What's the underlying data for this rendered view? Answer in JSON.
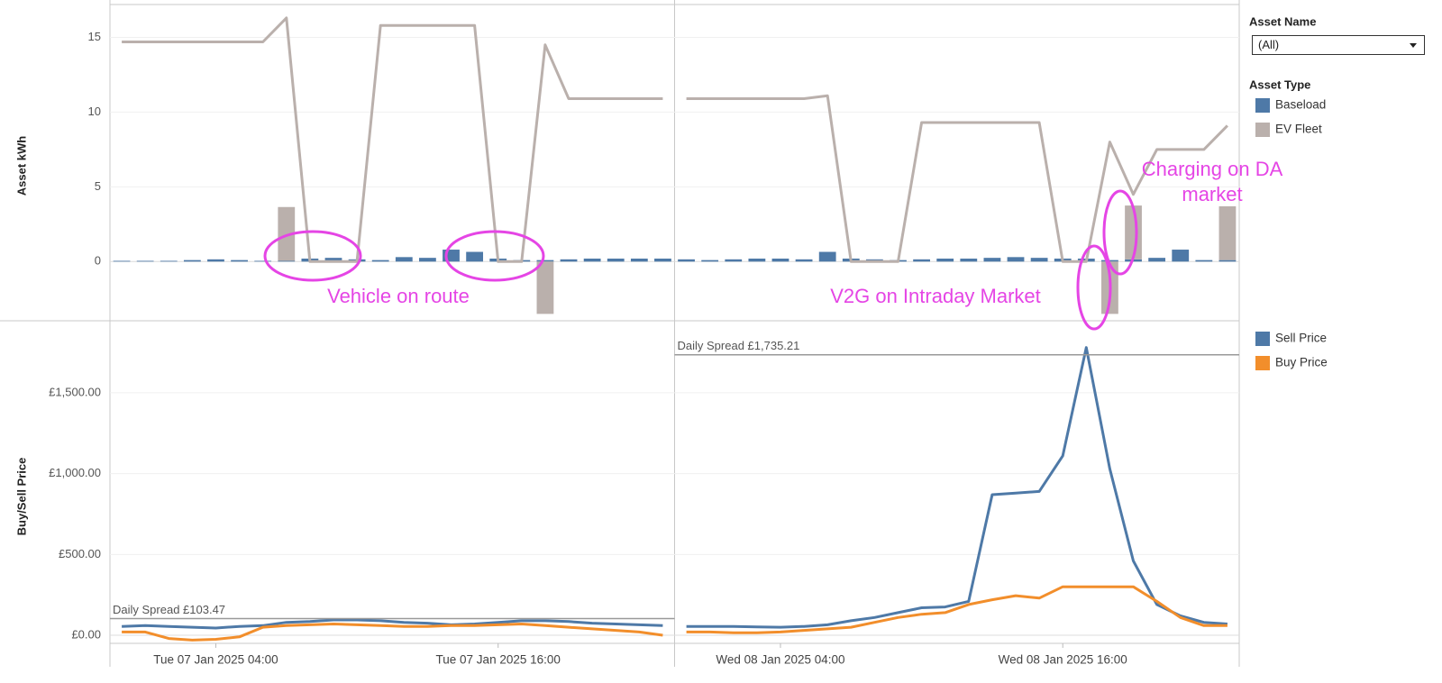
{
  "filter": {
    "title": "Asset Name",
    "value": "(All)"
  },
  "chart_data": [
    {
      "type": "bar",
      "y_label": "Asset kWh",
      "legend_title": "Asset Type",
      "x": [
        0,
        1,
        2,
        3,
        4,
        5,
        6,
        7,
        8,
        9,
        10,
        11,
        12,
        13,
        14,
        15,
        16,
        17,
        18,
        19,
        20,
        21,
        22,
        23,
        24,
        25,
        26,
        27,
        28,
        29,
        30,
        31,
        32,
        33,
        34,
        35,
        36,
        37,
        38,
        39,
        40,
        41,
        42,
        43,
        44,
        45,
        46,
        47
      ],
      "xlim": [
        -0.5,
        47.5
      ],
      "ylim": [
        -3.9,
        17.2
      ],
      "yticks": [
        0,
        5,
        10,
        15
      ],
      "grid": true,
      "series": [
        {
          "name": "Baseload",
          "color": "#4e79a7",
          "values": [
            0.05,
            0.05,
            0.05,
            0.1,
            0.15,
            0.1,
            0.05,
            0.05,
            0.2,
            0.25,
            0.15,
            0.1,
            0.3,
            0.25,
            0.8,
            0.65,
            0.2,
            0.1,
            0.1,
            0.15,
            0.2,
            0.2,
            0.2,
            0.2,
            0.15,
            0.1,
            0.15,
            0.2,
            0.2,
            0.15,
            0.65,
            0.2,
            0.15,
            0.1,
            0.15,
            0.2,
            0.2,
            0.25,
            0.3,
            0.25,
            0.2,
            0.2,
            0.1,
            0.15,
            0.25,
            0.8,
            0.1,
            0.1
          ]
        },
        {
          "name": "EV Fleet",
          "color": "#bab0ac",
          "values": [
            0,
            0,
            0,
            0,
            0,
            0,
            0,
            3.6,
            0,
            0,
            0,
            0,
            0,
            0,
            0,
            0,
            0,
            0,
            -3.5,
            0,
            0,
            0,
            0,
            0,
            0,
            0,
            0,
            0,
            0,
            0,
            0,
            0,
            0,
            0,
            0,
            0,
            0,
            0,
            0,
            0,
            0,
            0,
            -3.5,
            3.6,
            0,
            0,
            0,
            3.6
          ],
          "line_values": [
            14.7,
            14.7,
            14.7,
            14.7,
            14.7,
            14.7,
            14.7,
            16.3,
            0,
            0,
            0,
            15.8,
            15.8,
            15.8,
            15.8,
            15.8,
            0,
            0,
            14.5,
            10.9,
            10.9,
            10.9,
            10.9,
            10.9,
            10.9,
            10.9,
            10.9,
            10.9,
            10.9,
            10.9,
            11.1,
            0,
            0,
            0,
            9.3,
            9.3,
            9.3,
            9.3,
            9.3,
            9.3,
            0,
            0,
            8,
            4.5,
            7.5,
            7.5,
            7.5,
            9.1
          ]
        }
      ],
      "annotations": [
        "Vehicle on route",
        "V2G on Intraday Market",
        "Charging on DA market"
      ],
      "annotation_color": "#e545e5"
    },
    {
      "type": "line",
      "y_label": "Buy/Sell Price",
      "x": [
        0,
        1,
        2,
        3,
        4,
        5,
        6,
        7,
        8,
        9,
        10,
        11,
        12,
        13,
        14,
        15,
        16,
        17,
        18,
        19,
        20,
        21,
        22,
        23,
        24,
        25,
        26,
        27,
        28,
        29,
        30,
        31,
        32,
        33,
        34,
        35,
        36,
        37,
        38,
        39,
        40,
        41,
        42,
        43,
        44,
        45,
        46,
        47
      ],
      "xlim": [
        -0.5,
        47.5
      ],
      "ylim": [
        -50,
        1940
      ],
      "yticks": [
        {
          "value": 0,
          "label": "£0.00"
        },
        {
          "value": 500,
          "label": "£500.00"
        },
        {
          "value": 1000,
          "label": "£1,000.00"
        },
        {
          "value": 1500,
          "label": "£1,500.00"
        }
      ],
      "xticks": [
        {
          "value": 4,
          "label": "Tue 07 Jan 2025 04:00"
        },
        {
          "value": 16,
          "label": "Tue 07 Jan 2025 16:00"
        },
        {
          "value": 28,
          "label": "Wed 08 Jan 2025 04:00"
        },
        {
          "value": 40,
          "label": "Wed 08 Jan 2025 16:00"
        }
      ],
      "grid": true,
      "series": [
        {
          "name": "Sell Price",
          "color": "#4e79a7",
          "values": [
            55,
            60,
            55,
            50,
            45,
            55,
            60,
            80,
            85,
            95,
            95,
            90,
            80,
            75,
            65,
            70,
            80,
            90,
            90,
            85,
            75,
            70,
            65,
            60,
            55,
            55,
            55,
            52,
            50,
            55,
            65,
            90,
            110,
            140,
            170,
            175,
            210,
            870,
            880,
            890,
            1110,
            1780,
            1030,
            460,
            190,
            120,
            80,
            70
          ]
        },
        {
          "name": "Buy Price",
          "color": "#f28e2b",
          "values": [
            20,
            20,
            -20,
            -30,
            -25,
            -10,
            50,
            60,
            65,
            70,
            65,
            60,
            55,
            55,
            60,
            60,
            65,
            70,
            60,
            50,
            40,
            30,
            20,
            0,
            20,
            20,
            15,
            15,
            20,
            30,
            40,
            50,
            80,
            110,
            130,
            140,
            190,
            220,
            245,
            230,
            300,
            300,
            300,
            300,
            210,
            110,
            60,
            60
          ]
        }
      ],
      "reference_lines": [
        {
          "label": "Daily Spread £103.47",
          "value": 103.47
        },
        {
          "label": "Daily Spread £1,735.21",
          "value": 1735.21
        }
      ]
    }
  ]
}
